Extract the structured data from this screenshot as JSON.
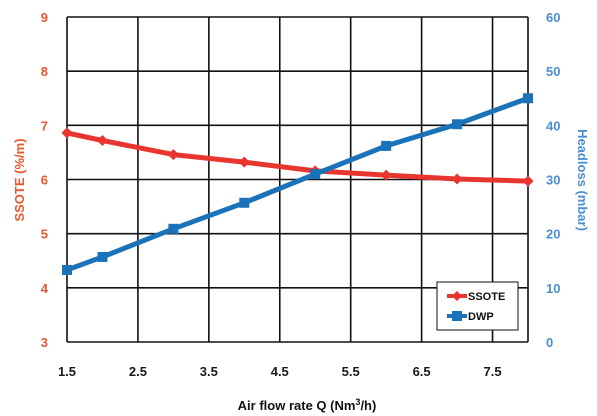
{
  "chart_data": {
    "type": "line",
    "xlabel_main": "Air flow rate Q (Nm",
    "xlabel_sup": "3",
    "xlabel_end": "/h)",
    "ylabel_left": "SSOTE (%/m)",
    "ylabel_right": "Headloss (mbar)",
    "xlim": [
      1.5,
      8.0
    ],
    "x_ticks": [
      "1.5",
      "2.5",
      "3.5",
      "4.5",
      "5.5",
      "6.5",
      "7.5"
    ],
    "x_tick_values": [
      1.5,
      2.5,
      3.5,
      4.5,
      5.5,
      6.5,
      7.5
    ],
    "ylim_left": [
      3,
      9
    ],
    "y_ticks_left": [
      "3",
      "4",
      "5",
      "6",
      "7",
      "8",
      "9"
    ],
    "ylim_right": [
      0,
      60
    ],
    "y_ticks_right": [
      "0",
      "10",
      "20",
      "30",
      "40",
      "50",
      "60"
    ],
    "grid": true,
    "legend_position": "bottom-right",
    "series": [
      {
        "name": "SSOTE",
        "axis": "left",
        "color": "#e8352e",
        "marker": "diamond",
        "x": [
          1.5,
          2.0,
          3.0,
          4.0,
          5.0,
          6.0,
          7.0,
          8.0
        ],
        "values": [
          6.86,
          6.72,
          6.46,
          6.32,
          6.16,
          6.08,
          6.01,
          5.97
        ]
      },
      {
        "name": "DWP",
        "axis": "right",
        "color": "#1a73b8",
        "marker": "square",
        "x": [
          1.5,
          2.0,
          3.0,
          4.0,
          5.0,
          6.0,
          7.0,
          8.0
        ],
        "values": [
          13.3,
          15.7,
          20.9,
          25.7,
          31.0,
          36.2,
          40.2,
          45.0
        ]
      }
    ]
  },
  "colors": {
    "left_axis": "#e8562e",
    "right_axis": "#4a8fd0",
    "grid": "#111111"
  }
}
